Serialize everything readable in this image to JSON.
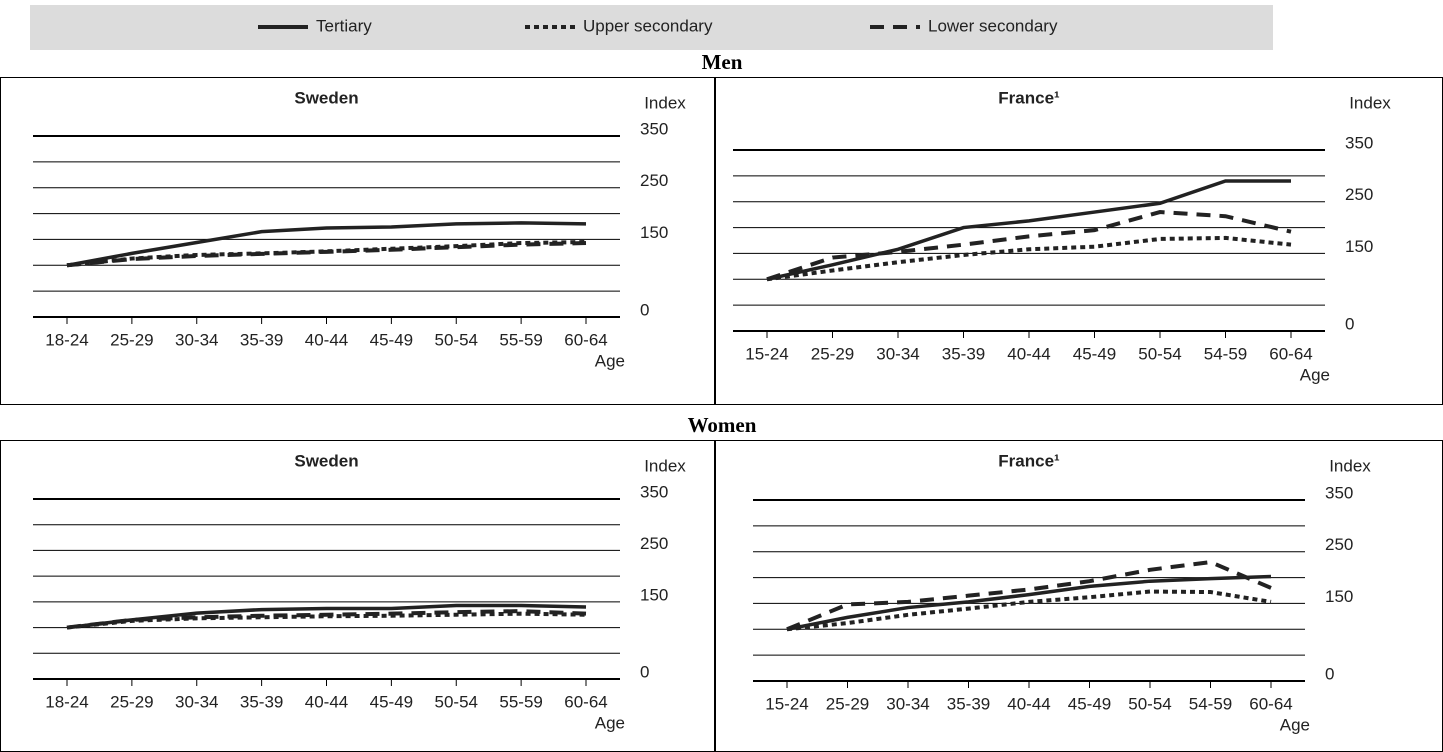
{
  "chart_data": [
    {
      "type": "line",
      "group": "Men",
      "title": "Sweden",
      "y_label": "Index",
      "x_label": "Age",
      "categories": [
        "18-24",
        "25-29",
        "30-34",
        "35-39",
        "40-44",
        "45-49",
        "50-54",
        "55-59",
        "60-64"
      ],
      "ylim": [
        0,
        350
      ],
      "yticks": [
        0,
        150,
        250,
        350
      ],
      "grid_lines": [
        50,
        100,
        150,
        200,
        250,
        300,
        350
      ],
      "series": [
        {
          "name": "Tertiary",
          "color": "#222222",
          "style": "solid",
          "values": [
            100,
            123,
            144,
            165,
            172,
            174,
            180,
            182,
            180
          ]
        },
        {
          "name": "Upper secondary",
          "color": "#222222",
          "style": "dotted",
          "values": [
            100,
            113,
            120,
            123,
            127,
            132,
            137,
            143,
            145
          ]
        },
        {
          "name": "Lower secondary",
          "color": "#222222",
          "style": "dashed",
          "values": [
            100,
            112,
            118,
            122,
            126,
            130,
            135,
            140,
            143
          ]
        }
      ]
    },
    {
      "type": "line",
      "group": "Men",
      "title": "France¹",
      "y_label": "Index",
      "x_label": "Age",
      "categories": [
        "15-24",
        "25-29",
        "30-34",
        "35-39",
        "40-44",
        "45-49",
        "50-54",
        "54-59",
        "60-64"
      ],
      "ylim": [
        0,
        350
      ],
      "yticks": [
        0,
        150,
        250,
        350
      ],
      "grid_lines": [
        50,
        100,
        150,
        200,
        250,
        300,
        350
      ],
      "series": [
        {
          "name": "Tertiary",
          "color": "#222222",
          "style": "solid",
          "values": [
            100,
            128,
            158,
            200,
            213,
            230,
            247,
            290,
            290
          ]
        },
        {
          "name": "Upper secondary",
          "color": "#222222",
          "style": "dotted",
          "values": [
            100,
            117,
            133,
            147,
            158,
            163,
            178,
            180,
            167
          ]
        },
        {
          "name": "Lower secondary",
          "color": "#222222",
          "style": "dashed",
          "values": [
            100,
            142,
            153,
            167,
            183,
            195,
            230,
            222,
            192
          ]
        }
      ]
    },
    {
      "type": "line",
      "group": "Women",
      "title": "Sweden",
      "y_label": "Index",
      "x_label": "Age",
      "categories": [
        "18-24",
        "25-29",
        "30-34",
        "35-39",
        "40-44",
        "45-49",
        "50-54",
        "55-59",
        "60-64"
      ],
      "ylim": [
        0,
        350
      ],
      "yticks": [
        0,
        150,
        250,
        350
      ],
      "grid_lines": [
        50,
        100,
        150,
        200,
        250,
        300,
        350
      ],
      "series": [
        {
          "name": "Tertiary",
          "color": "#222222",
          "style": "solid",
          "values": [
            100,
            115,
            128,
            135,
            137,
            137,
            143,
            143,
            140
          ]
        },
        {
          "name": "Upper secondary",
          "color": "#222222",
          "style": "dotted",
          "values": [
            100,
            113,
            118,
            120,
            122,
            123,
            125,
            127,
            125
          ]
        },
        {
          "name": "Lower secondary",
          "color": "#222222",
          "style": "dashed",
          "values": [
            100,
            115,
            120,
            123,
            125,
            127,
            130,
            132,
            127
          ]
        }
      ]
    },
    {
      "type": "line",
      "group": "Women",
      "title": "France¹",
      "y_label": "Index",
      "x_label": "Age",
      "categories": [
        "15-24",
        "25-29",
        "30-34",
        "35-39",
        "40-44",
        "45-49",
        "50-54",
        "54-59",
        "60-64"
      ],
      "ylim": [
        0,
        350
      ],
      "yticks": [
        0,
        150,
        250,
        350
      ],
      "grid_lines": [
        50,
        100,
        150,
        200,
        250,
        300,
        350
      ],
      "series": [
        {
          "name": "Tertiary",
          "color": "#222222",
          "style": "solid",
          "values": [
            100,
            123,
            142,
            153,
            167,
            183,
            193,
            198,
            202
          ]
        },
        {
          "name": "Upper secondary",
          "color": "#222222",
          "style": "dotted",
          "values": [
            100,
            112,
            128,
            140,
            153,
            162,
            173,
            172,
            153
          ]
        },
        {
          "name": "Lower secondary",
          "color": "#222222",
          "style": "dashed",
          "values": [
            100,
            148,
            153,
            165,
            177,
            193,
            215,
            230,
            180
          ]
        }
      ]
    }
  ]
}
